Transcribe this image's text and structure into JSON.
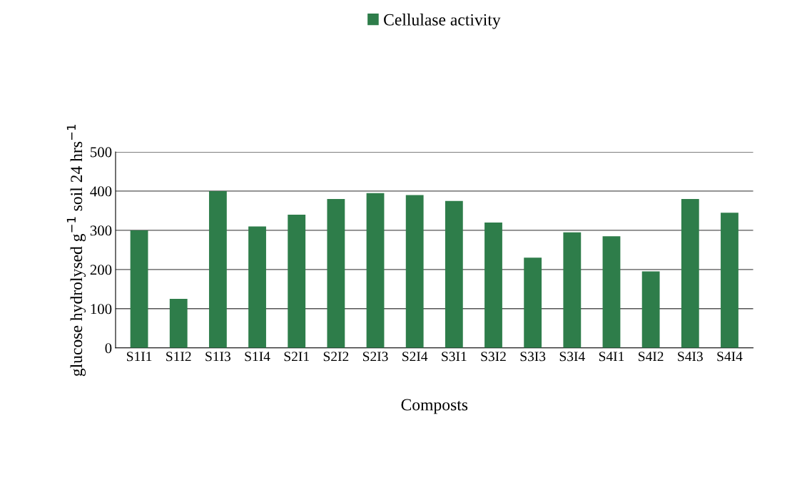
{
  "chart_data": {
    "type": "bar",
    "xlabel": "Composts",
    "ylabel": "glucose hydrolysed g$^{−1}$ soil 24 hrs$^{−1}$",
    "categories": [
      "S1I1",
      "S1I2",
      "S1I3",
      "S1I4",
      "S2I1",
      "S2I2",
      "S2I3",
      "S2I4",
      "S3I1",
      "S3I2",
      "S3I3",
      "S3I4",
      "S4I1",
      "S4I2",
      "S4I3",
      "S4I4"
    ],
    "series": [
      {
        "name": "Cellulase activity",
        "color": "#2e7d4a",
        "values": [
          300,
          125,
          400,
          310,
          340,
          380,
          395,
          390,
          375,
          320,
          230,
          295,
          285,
          195,
          380,
          345
        ]
      }
    ],
    "ylim": [
      0,
      500
    ],
    "yticks": [
      0,
      100,
      200,
      300,
      400,
      500
    ],
    "grid": "y",
    "legend": "top"
  }
}
